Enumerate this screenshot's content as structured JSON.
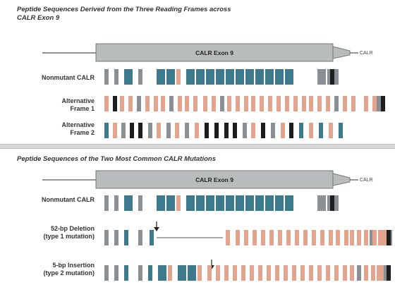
{
  "panels": [
    {
      "title": "Peptide Sequences Derived from the Three Reading Frames across\nCALR Exon 9",
      "exon_label": "CALR Exon 9",
      "tail_label": "CALR",
      "rows": [
        {
          "label": "Nonmutant CALR",
          "bars": "GGBGBBPBBBBBBBBBBBGGGKGK"
        },
        {
          "label": "Alternative\nFrame 1",
          "bars": "PKPPGPPPGPPPPPGPPPPPPPPPPPPPGPPPPGK"
        },
        {
          "label": "Alternative\nFrame 2",
          "bars": "BPGKKGPGPGPKKKKGPKGPKBPBPB"
        }
      ]
    },
    {
      "title": "Peptide Sequences of the Two Most Common CALR Mutations",
      "exon_label": "CALR Exon 9",
      "tail_label": "CALR",
      "rows": [
        {
          "label": "Nonmutant CALR",
          "bars": "GGBGBBPBBBBBBBBBBBGGGKGK"
        },
        {
          "label": "52-bp Deletion\n(type 1 mutation)",
          "bars": "GGBGBPPPPPPPPPPPPPPPPPPGPPPPGK"
        },
        {
          "label": "5-bp Insertion\n(type 2 mutation)",
          "bars": "GGBGBBPBBPPPPPPPPPPPPPPPPPPPGPPPPGK"
        }
      ]
    }
  ],
  "legend_colors": {
    "B": "#3c7a8c",
    "P": "#e2a48c",
    "G": "#8a8f94",
    "K": "#1e1e1e",
    "exon_fill": "#b9bcbc",
    "line": "#555555"
  }
}
